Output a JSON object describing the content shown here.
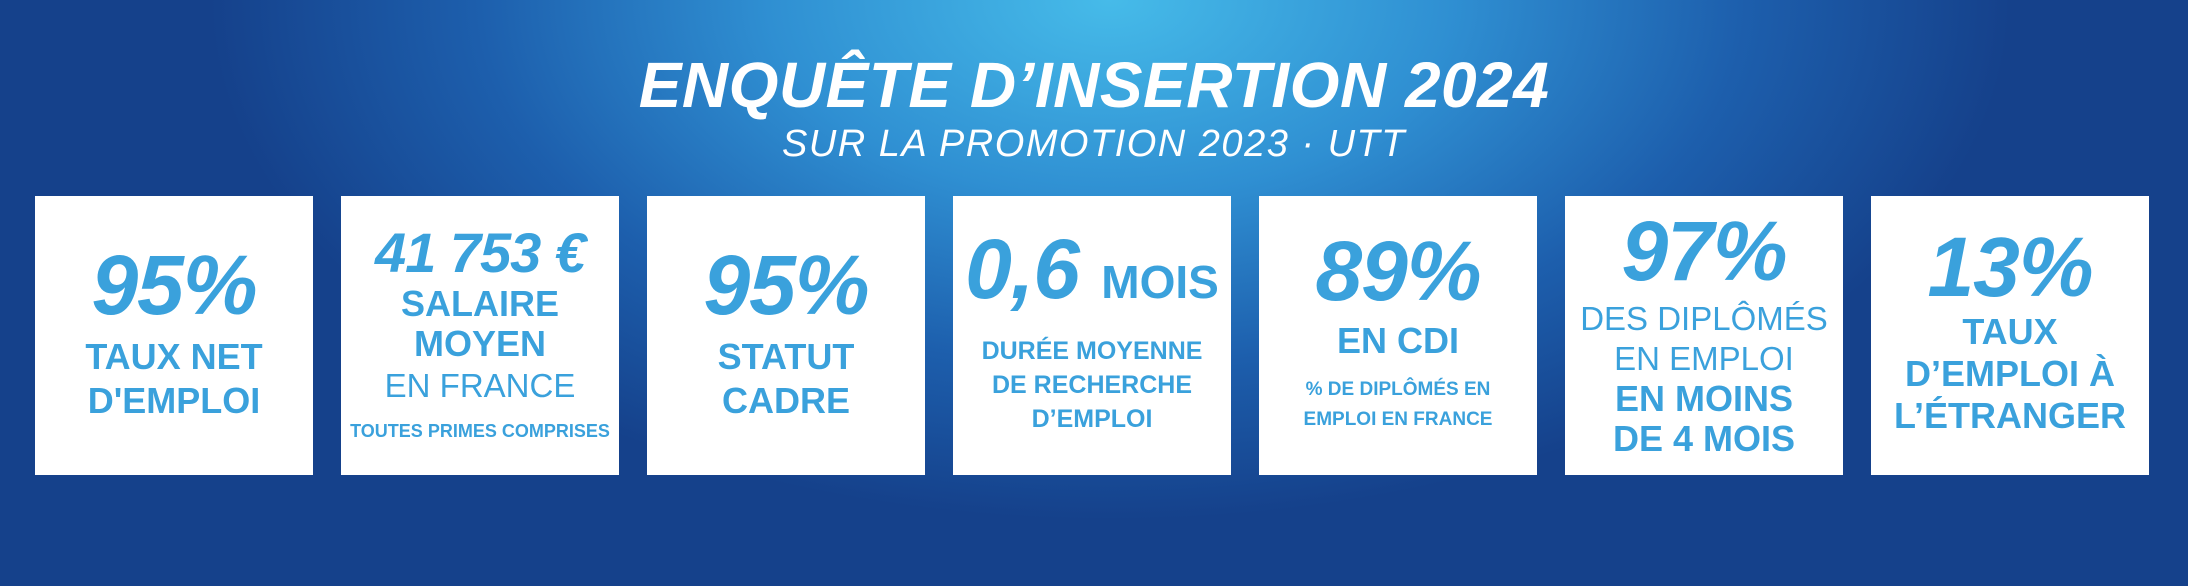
{
  "header": {
    "title": "ENQUÊTE D’INSERTION 2024",
    "subtitle": "SUR LA PROMOTION 2023  · UTT"
  },
  "colors": {
    "accent": "#3aa1dc",
    "background_light": "#46bbe9",
    "background_dark": "#15418b",
    "card": "#ffffff"
  },
  "cards": [
    {
      "value": "95%",
      "label_line1": "TAUX NET",
      "label_line2": "D'EMPLOI"
    },
    {
      "value": "41 753 €",
      "label_line1": "SALAIRE",
      "label_line2": "MOYEN",
      "label_line3": "EN FRANCE",
      "note": "TOUTES PRIMES COMPRISES"
    },
    {
      "value": "95%",
      "label_line1": "STATUT",
      "label_line2": "CADRE"
    },
    {
      "value": "0,6",
      "unit": "MOIS",
      "label_line1": "DURÉE MOYENNE",
      "label_line2": "DE RECHERCHE",
      "label_line3": "D’EMPLOI"
    },
    {
      "value": "89%",
      "label_line1": "EN CDI",
      "note_line1": "% DE DIPLÔMÉS EN",
      "note_line2": "EMPLOI EN FRANCE"
    },
    {
      "value": "97%",
      "label_line1": "DES DIPLÔMÉS",
      "label_line2": "EN EMPLOI",
      "label_line3": "EN MOINS",
      "label_line4": "DE 4 MOIS"
    },
    {
      "value": "13%",
      "label_line1": "TAUX",
      "label_line2": "D’EMPLOI À",
      "label_line3": "L’ÉTRANGER"
    }
  ]
}
